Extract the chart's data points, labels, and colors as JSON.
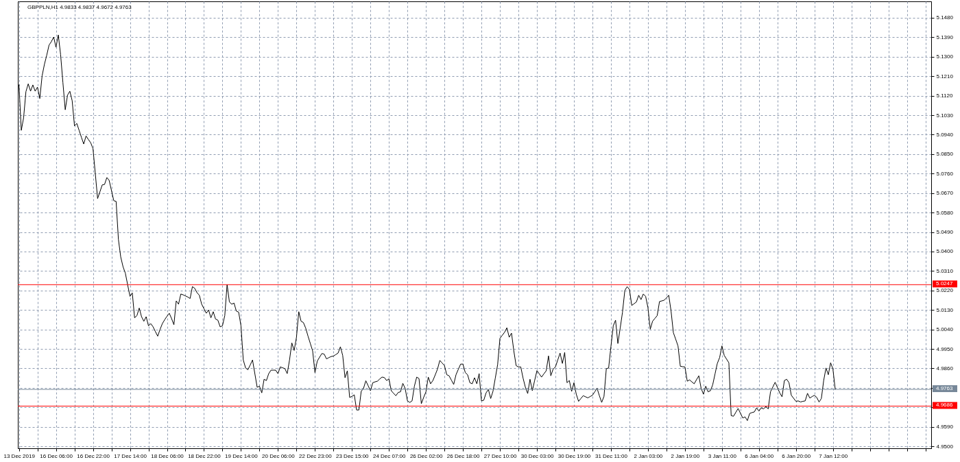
{
  "chart_data": {
    "type": "line",
    "title": "GBPPLN,H1 4.9833 4.9837 4.9672 4.9763",
    "color": "#000000",
    "categories": [
      "13 Dec 2019",
      null,
      null,
      null,
      null,
      null,
      null,
      null,
      null,
      null,
      null,
      null,
      null,
      null,
      null,
      null,
      "16 Dec 06:00",
      null,
      null,
      null,
      null,
      null,
      null,
      null,
      null,
      null,
      null,
      null,
      null,
      null,
      null,
      null,
      "16 Dec 22:00",
      null,
      null,
      null,
      null,
      null,
      null,
      null,
      null,
      null,
      null,
      null,
      null,
      null,
      null,
      null,
      "17 Dec 14:00",
      null,
      null,
      null,
      null,
      null,
      null,
      null,
      null,
      null,
      null,
      null,
      null,
      null,
      null,
      null,
      "18 Dec 06:00",
      null,
      null,
      null,
      null,
      null,
      null,
      null,
      null,
      null,
      null,
      null,
      null,
      null,
      null,
      null,
      "18 Dec 22:00",
      null,
      null,
      null,
      null,
      null,
      null,
      null,
      null,
      null,
      null,
      null,
      null,
      null,
      null,
      null,
      "19 Dec 14:00",
      null,
      null,
      null,
      null,
      null,
      null,
      null,
      null,
      null,
      null,
      null,
      null,
      null,
      null,
      null,
      "20 Dec 06:00",
      null,
      null,
      null,
      null,
      null,
      null,
      null,
      null,
      null,
      null,
      null,
      null,
      null,
      null,
      null,
      "22 Dec 23:00",
      null,
      null,
      null,
      null,
      null,
      null,
      null,
      null,
      null,
      null,
      null,
      null,
      null,
      null,
      null,
      "23 Dec 15:00",
      null,
      null,
      null,
      null,
      null,
      null,
      null,
      null,
      null,
      null,
      null,
      null,
      null,
      null,
      null,
      "24 Dec 07:00",
      null,
      null,
      null,
      null,
      null,
      null,
      null,
      null,
      null,
      null,
      null,
      null,
      null,
      null,
      null,
      "26 Dec 02:00",
      null,
      null,
      null,
      null,
      null,
      null,
      null,
      null,
      null,
      null,
      null,
      null,
      null,
      null,
      null,
      "26 Dec 18:00",
      null,
      null,
      null,
      null,
      null,
      null,
      null,
      null,
      null,
      null,
      null,
      null,
      null,
      null,
      null,
      "27 Dec 10:00",
      null,
      null,
      null,
      null,
      null,
      null,
      null,
      null,
      null,
      null,
      null,
      null,
      null,
      null,
      null,
      "30 Dec 03:00",
      null,
      null,
      null,
      null,
      null,
      null,
      null,
      null,
      null,
      null,
      null,
      null,
      null,
      null,
      null,
      "30 Dec 19:00",
      null,
      null,
      null,
      null,
      null,
      null,
      null,
      null,
      null,
      null,
      null,
      null,
      null,
      null,
      null,
      "31 Dec 11:00",
      null,
      null,
      null,
      null,
      null,
      null,
      null,
      null,
      null,
      null,
      null,
      null,
      null,
      null,
      null,
      "2 Jan 03:00",
      null,
      null,
      null,
      null,
      null,
      null,
      null,
      null,
      null,
      null,
      null,
      null,
      null,
      null,
      null,
      "2 Jan 19:00",
      null,
      null,
      null,
      null,
      null,
      null,
      null,
      null,
      null,
      null,
      null,
      null,
      null,
      null,
      null,
      "3 Jan 11:00",
      null,
      null,
      null,
      null,
      null,
      null,
      null,
      null,
      null,
      null,
      null,
      null,
      null,
      null,
      null,
      "6 Jan 04:00",
      null,
      null,
      null,
      null,
      null,
      null,
      null,
      null,
      null,
      null,
      null,
      null,
      null,
      null,
      null,
      "6 Jan 20:00",
      null,
      null,
      null,
      null,
      null,
      null,
      null,
      null,
      null,
      null,
      null,
      null,
      null,
      null,
      null,
      "7 Jan 12:00",
      null,
      null,
      null,
      null,
      null,
      null,
      null,
      null,
      null,
      null,
      null,
      null,
      null,
      null,
      null,
      null,
      null,
      null,
      null,
      null,
      null,
      null,
      null,
      null,
      null,
      null,
      null,
      null,
      null,
      null,
      null,
      null,
      null,
      null,
      null,
      null,
      null,
      null,
      null,
      null,
      null,
      null
    ],
    "values": [
      5.117,
      5.096,
      5.1018,
      5.1139,
      5.1175,
      5.1141,
      5.117,
      5.1141,
      5.116,
      5.1107,
      5.1212,
      5.1265,
      5.1307,
      5.1354,
      5.137,
      5.1391,
      5.1344,
      5.1401,
      5.131,
      5.118,
      5.1055,
      5.1123,
      5.1141,
      5.1097,
      5.0981,
      5.0992,
      5.096,
      5.0928,
      5.0897,
      5.0934,
      5.0918,
      5.0903,
      5.0876,
      5.0761,
      5.0645,
      5.0676,
      5.0708,
      5.071,
      5.0742,
      5.0729,
      5.0682,
      5.0635,
      5.0632,
      5.0456,
      5.0375,
      5.033,
      5.03,
      5.0246,
      5.0193,
      5.0209,
      5.0094,
      5.0104,
      5.0139,
      5.0099,
      5.0078,
      5.0099,
      5.0057,
      5.0067,
      5.0052,
      5.003,
      5.0009,
      5.004,
      5.0067,
      5.0085,
      5.0101,
      5.0115,
      5.009,
      5.0062,
      5.0172,
      5.0157,
      5.0204,
      5.02,
      5.0195,
      5.019,
      5.0183,
      5.0238,
      5.023,
      5.021,
      5.0198,
      5.0157,
      5.0136,
      5.0115,
      5.013,
      5.0094,
      5.0122,
      5.0088,
      5.0083,
      5.0052,
      5.0057,
      5.0104,
      5.0248,
      5.0167,
      5.0157,
      5.0162,
      5.0125,
      5.012,
      5.0057,
      4.9899,
      4.9862,
      4.9854,
      4.9876,
      4.9899,
      4.9836,
      4.9773,
      4.9778,
      4.9747,
      4.981,
      4.9804,
      4.9836,
      4.9852,
      4.9852,
      4.9852,
      4.9836,
      4.9867,
      4.9863,
      4.9859,
      4.9836,
      4.9899,
      4.9978,
      4.9943,
      5.0004,
      5.0122,
      5.0078,
      5.0072,
      5.0046,
      5.0009,
      4.9975,
      4.9941,
      4.9841,
      4.9894,
      4.9912,
      4.9929,
      4.9926,
      4.9904,
      4.991,
      4.9915,
      4.9917,
      4.9924,
      4.9931,
      4.996,
      4.992,
      4.9817,
      4.9849,
      4.9726,
      4.9731,
      4.9738,
      4.9668,
      4.9668,
      4.9754,
      4.9768,
      4.9803,
      4.978,
      4.9757,
      4.9794,
      4.9798,
      4.9801,
      4.9811,
      4.982,
      4.9818,
      4.9804,
      4.9812,
      4.9757,
      4.9745,
      4.9734,
      4.9749,
      4.9752,
      4.9791,
      4.9768,
      4.971,
      4.9703,
      4.971,
      4.9778,
      4.982,
      4.9813,
      4.9697,
      4.9726,
      4.9752,
      4.982,
      4.9789,
      4.9804,
      4.983,
      4.9857,
      4.9897,
      4.9885,
      4.9873,
      4.9831,
      4.9826,
      4.9806,
      4.9786,
      4.9831,
      4.9856,
      4.988,
      4.988,
      4.9841,
      4.9831,
      4.9794,
      4.9789,
      4.9817,
      4.9789,
      4.9836,
      4.971,
      4.9713,
      4.9747,
      4.9763,
      4.9721,
      4.9755,
      4.9816,
      4.9878,
      4.9999,
      5.0013,
      5.0027,
      5.0048,
      5.0004,
      5.0023,
      4.9941,
      4.9873,
      4.9867,
      4.9867,
      4.9815,
      4.9773,
      4.9744,
      4.981,
      4.9757,
      4.9804,
      4.985,
      4.9835,
      4.982,
      4.9835,
      4.9849,
      4.9918,
      4.9826,
      4.9857,
      4.9867,
      4.9899,
      4.9931,
      4.9883,
      4.9934,
      4.9794,
      4.9804,
      4.9754,
      4.9794,
      4.9741,
      4.9708,
      4.9721,
      4.9734,
      4.9729,
      4.9724,
      4.973,
      4.9736,
      4.9752,
      4.9768,
      4.9734,
      4.9703,
      4.9731,
      4.9859,
      4.9862,
      4.9962,
      5.0057,
      5.0083,
      4.9975,
      5.0046,
      5.012,
      5.022,
      5.0238,
      5.0225,
      5.0151,
      5.0159,
      5.0167,
      5.0198,
      5.0178,
      5.0204,
      5.0193,
      5.0141,
      5.0041,
      5.0078,
      5.0091,
      5.0104,
      5.0169,
      5.0172,
      5.0175,
      5.0186,
      5.0198,
      5.0125,
      5.0025,
      4.9995,
      4.9964,
      4.987,
      4.9868,
      4.9867,
      4.9801,
      4.9807,
      4.9798,
      4.9789,
      4.9808,
      4.9826,
      4.9768,
      4.9741,
      4.9778,
      4.9752,
      4.9757,
      4.9784,
      4.9834,
      4.9883,
      4.991,
      4.9964,
      4.992,
      4.9903,
      4.9886,
      4.9642,
      4.9639,
      4.9657,
      4.9675,
      4.9653,
      4.9631,
      4.9636,
      4.9619,
      4.9652,
      4.9656,
      4.9659,
      4.9678,
      4.9663,
      4.9678,
      4.9673,
      4.9684,
      4.9673,
      4.9752,
      4.9774,
      4.9796,
      4.9772,
      4.9747,
      4.9729,
      4.9804,
      4.981,
      4.9794,
      4.9736,
      4.9722,
      4.9708,
      4.971,
      4.9705,
      4.9708,
      4.971,
      4.9745,
      4.9723,
      4.973,
      4.9736,
      4.9726,
      4.9705,
      4.9721,
      4.9804,
      4.9862,
      4.9831,
      4.9886,
      4.9857,
      4.9763,
      null,
      null,
      null,
      null,
      null,
      null,
      null,
      null,
      null,
      null,
      null,
      null,
      null,
      null,
      null,
      null,
      null,
      null,
      null,
      null,
      null,
      null,
      null,
      null,
      null,
      null,
      null,
      null,
      null,
      null,
      null,
      null,
      null,
      null,
      null,
      null,
      null,
      null,
      null,
      null,
      null
    ],
    "ylim": [
      4.9491,
      5.1556
    ],
    "yticks": [
      {
        "value": 4.95,
        "label": "4.9500"
      },
      {
        "value": 4.959,
        "label": "4.9590"
      },
      {
        "value": 4.968,
        "label": null
      },
      {
        "value": 4.977,
        "label": null
      },
      {
        "value": 4.986,
        "label": "4.9860"
      },
      {
        "value": 4.995,
        "label": "4.9950"
      },
      {
        "value": 5.004,
        "label": "5.0040"
      },
      {
        "value": 5.013,
        "label": "5.0130"
      },
      {
        "value": 5.022,
        "label": "5.0220"
      },
      {
        "value": 5.031,
        "label": "5.0310"
      },
      {
        "value": 5.04,
        "label": "5.0400"
      },
      {
        "value": 5.049,
        "label": "5.0490"
      },
      {
        "value": 5.058,
        "label": "5.0580"
      },
      {
        "value": 5.067,
        "label": "5.0670"
      },
      {
        "value": 5.076,
        "label": "5.0760"
      },
      {
        "value": 5.085,
        "label": "5.0850"
      },
      {
        "value": 5.094,
        "label": "5.0940"
      },
      {
        "value": 5.103,
        "label": "5.1030"
      },
      {
        "value": 5.112,
        "label": "5.1120"
      },
      {
        "value": 5.121,
        "label": "5.1210"
      },
      {
        "value": 5.13,
        "label": "5.1300"
      },
      {
        "value": 5.139,
        "label": "5.1390"
      },
      {
        "value": 5.148,
        "label": "5.1480"
      }
    ],
    "grid": true,
    "ref_lines": [
      {
        "axis": "y",
        "value": 5.0247,
        "label": "5.0247",
        "color": "#ff0000"
      },
      {
        "axis": "y",
        "value": 4.9763,
        "label": "4.9763",
        "color": "#778899"
      },
      {
        "axis": "y",
        "value": 4.9686,
        "label": "4.9686",
        "color": "#ff0000"
      }
    ]
  }
}
